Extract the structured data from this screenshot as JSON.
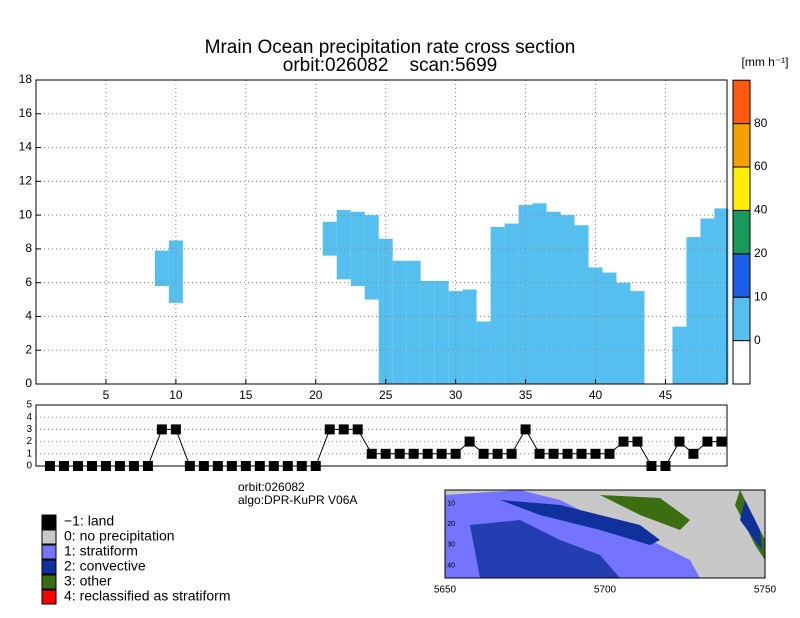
{
  "chart_data": [
    {
      "type": "cross_section",
      "title": "Mrain Ocean precipitation rate cross section",
      "subtitle": "orbit:026082    scan:5699",
      "x": [
        1,
        2,
        3,
        4,
        5,
        6,
        7,
        8,
        9,
        10,
        11,
        12,
        13,
        14,
        15,
        16,
        17,
        18,
        19,
        20,
        21,
        22,
        23,
        24,
        25,
        26,
        27,
        28,
        29,
        30,
        31,
        32,
        33,
        34,
        35,
        36,
        37,
        38,
        39,
        40,
        41,
        42,
        43,
        44,
        45,
        46,
        47,
        48,
        49
      ],
      "top": [
        null,
        null,
        null,
        null,
        null,
        null,
        null,
        null,
        7.9,
        8.5,
        null,
        null,
        null,
        null,
        null,
        null,
        null,
        null,
        null,
        null,
        9.6,
        10.3,
        10.2,
        10.0,
        8.6,
        7.3,
        7.3,
        6.1,
        6.1,
        5.5,
        5.6,
        3.7,
        9.3,
        9.5,
        10.6,
        10.7,
        10.2,
        10.0,
        9.4,
        6.9,
        6.6,
        6.0,
        5.5,
        null,
        null,
        3.4,
        8.7,
        9.8,
        10.4
      ],
      "base": [
        null,
        null,
        null,
        null,
        null,
        null,
        null,
        null,
        5.8,
        4.8,
        null,
        null,
        null,
        null,
        null,
        null,
        null,
        null,
        null,
        null,
        7.6,
        6.2,
        5.8,
        5.0,
        0,
        0,
        0,
        0,
        0,
        0,
        0,
        0,
        0,
        0,
        0,
        0,
        0,
        0,
        0,
        0,
        0,
        0,
        0,
        null,
        null,
        0,
        0,
        0,
        0
      ],
      "color": "#55bff0",
      "xlim": [
        0,
        49.4
      ],
      "xticks": [
        5,
        10,
        15,
        20,
        25,
        30,
        35,
        40,
        45
      ],
      "ylim": [
        0,
        18
      ],
      "yticks": [
        0,
        2,
        4,
        6,
        8,
        10,
        12,
        14,
        16,
        18
      ],
      "grid": true
    },
    {
      "type": "colorbar",
      "unit": "[mm h⁻¹]",
      "ticks": [
        0,
        10,
        20,
        40,
        60,
        80
      ],
      "colors": [
        "#ffffff",
        "#55bff0",
        "#1a5ee8",
        "#1a9a5a",
        "#ffee00",
        "#f5a000",
        "#ff5a10"
      ]
    },
    {
      "type": "rain_type",
      "x": [
        1,
        2,
        3,
        4,
        5,
        6,
        7,
        8,
        9,
        10,
        11,
        12,
        13,
        14,
        15,
        16,
        17,
        18,
        19,
        20,
        21,
        22,
        23,
        24,
        25,
        26,
        27,
        28,
        29,
        30,
        31,
        32,
        33,
        34,
        35,
        36,
        37,
        38,
        39,
        40,
        41,
        42,
        43,
        44,
        45,
        46,
        47,
        48,
        49
      ],
      "values": [
        0,
        0,
        0,
        0,
        0,
        0,
        0,
        0,
        3,
        3,
        0,
        0,
        0,
        0,
        0,
        0,
        0,
        0,
        0,
        0,
        3,
        3,
        3,
        1,
        1,
        1,
        1,
        1,
        1,
        1,
        2,
        1,
        1,
        1,
        3,
        1,
        1,
        1,
        1,
        1,
        1,
        2,
        2,
        0,
        0,
        2,
        1,
        2,
        2
      ],
      "xlim": [
        0,
        49.4
      ],
      "ylim": [
        0,
        5
      ],
      "yticks": [
        0,
        1,
        2,
        3,
        4,
        5
      ],
      "color": "#000000",
      "grid": true
    },
    {
      "type": "legend",
      "entries": [
        {
          "name": "−1: land",
          "color": "#000000"
        },
        {
          "name": "0: no precipitation",
          "color": "#c8c8c8"
        },
        {
          "name": "1: stratiform",
          "color": "#7474ff"
        },
        {
          "name": "2: convective",
          "color": "#10309c"
        },
        {
          "name": "3: other",
          "color": "#3a6e10"
        },
        {
          "name": "4: reclassified as stratiform",
          "color": "#ff0000"
        }
      ]
    },
    {
      "type": "info",
      "lines": [
        "orbit:026082",
        "algo:DPR-KuPR V06A"
      ]
    },
    {
      "type": "map",
      "xlim": [
        5650,
        5750
      ],
      "xticks": [
        5650,
        5700,
        5750
      ],
      "ylim": [
        46,
        3.5
      ],
      "yticks": [
        10,
        20,
        30,
        40
      ]
    }
  ]
}
